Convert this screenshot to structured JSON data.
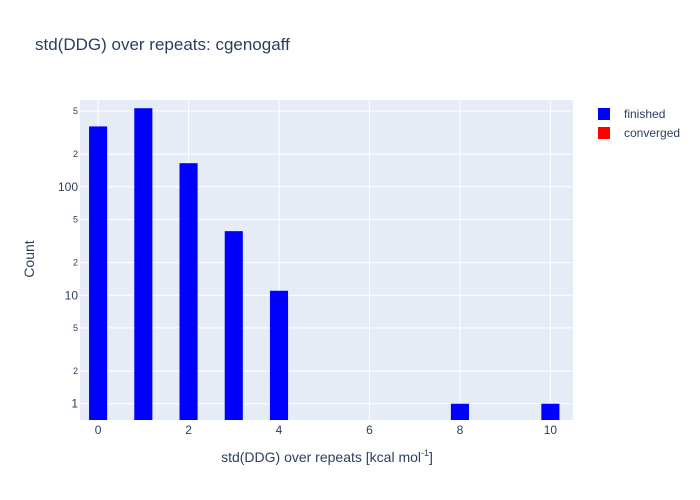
{
  "chart_data": {
    "type": "bar",
    "title": "std(DDG) over repeats: cgenogaff",
    "xlabel_prefix": "std(DDG) over repeats [kcal mol",
    "xlabel_sup": "-1",
    "xlabel_suffix": "]",
    "ylabel": "Count",
    "y_scale": "log",
    "xlim": [
      -0.4,
      10.5
    ],
    "ylim_log10": [
      -0.15,
      2.8
    ],
    "x_ticks": [
      0,
      2,
      4,
      6,
      8,
      10
    ],
    "x_tick_labels": [
      "0",
      "2",
      "4",
      "6",
      "8",
      "10"
    ],
    "y_major_ticks": [
      1,
      10,
      100
    ],
    "y_major_labels": [
      "1",
      "10",
      "100"
    ],
    "y_minor_ticks": [
      2,
      5,
      20,
      50,
      200,
      500
    ],
    "y_minor_labels": [
      "2",
      "5",
      "2",
      "5",
      "2",
      "5"
    ],
    "grid": true,
    "legend_position": "top-right",
    "series": [
      {
        "name": "finished",
        "color": "#0000ff",
        "bin_width": 0.4,
        "x": [
          0,
          1,
          2,
          3,
          4,
          8,
          10
        ],
        "values": [
          360,
          530,
          165,
          39,
          11,
          1,
          1
        ]
      },
      {
        "name": "converged",
        "color": "#ff0000",
        "bin_width": 0.4,
        "x": [],
        "values": []
      }
    ],
    "plot_background": "#e5ecf6",
    "grid_color": "#ffffff"
  }
}
